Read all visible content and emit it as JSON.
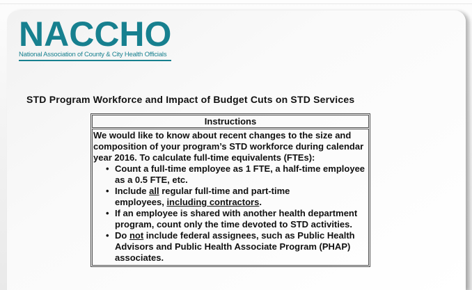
{
  "logo": {
    "name": "NACCHO",
    "tagline": "National Association of County & City Health Officials",
    "brand_color": "#17808F"
  },
  "page": {
    "title": "STD Program Workforce and Impact of Budget Cuts on STD Services"
  },
  "instructions": {
    "header": "Instructions",
    "bullet_glyph": "•",
    "intro_lines": [
      "We would like to know about recent changes to the size and",
      "composition of your program’s STD workforce during calendar",
      "year 2016. To calculate full-time equivalents (FTEs):"
    ],
    "bullets": [
      {
        "lines": [
          [
            {
              "t": "Count a full-time employee as 1 FTE, a half-time employee"
            }
          ],
          [
            {
              "t": "as a 0.5 FTE, etc."
            }
          ]
        ]
      },
      {
        "lines": [
          [
            {
              "t": "Include "
            },
            {
              "t": "all",
              "u": true
            },
            {
              "t": " regular full-time and part-time"
            }
          ],
          [
            {
              "t": "employees, "
            },
            {
              "t": "including contractors",
              "u": true
            },
            {
              "t": "."
            }
          ]
        ]
      },
      {
        "lines": [
          [
            {
              "t": "If an employee is shared with another health department"
            }
          ],
          [
            {
              "t": "program, count only the time devoted to STD activities."
            }
          ]
        ]
      },
      {
        "lines": [
          [
            {
              "t": "Do "
            },
            {
              "t": "not",
              "u": true
            },
            {
              "t": " include federal assignees, such as Public Health"
            }
          ],
          [
            {
              "t": "Advisors and Public Health Associate Program (PHAP)"
            }
          ],
          [
            {
              "t": "associates."
            }
          ]
        ]
      }
    ]
  }
}
